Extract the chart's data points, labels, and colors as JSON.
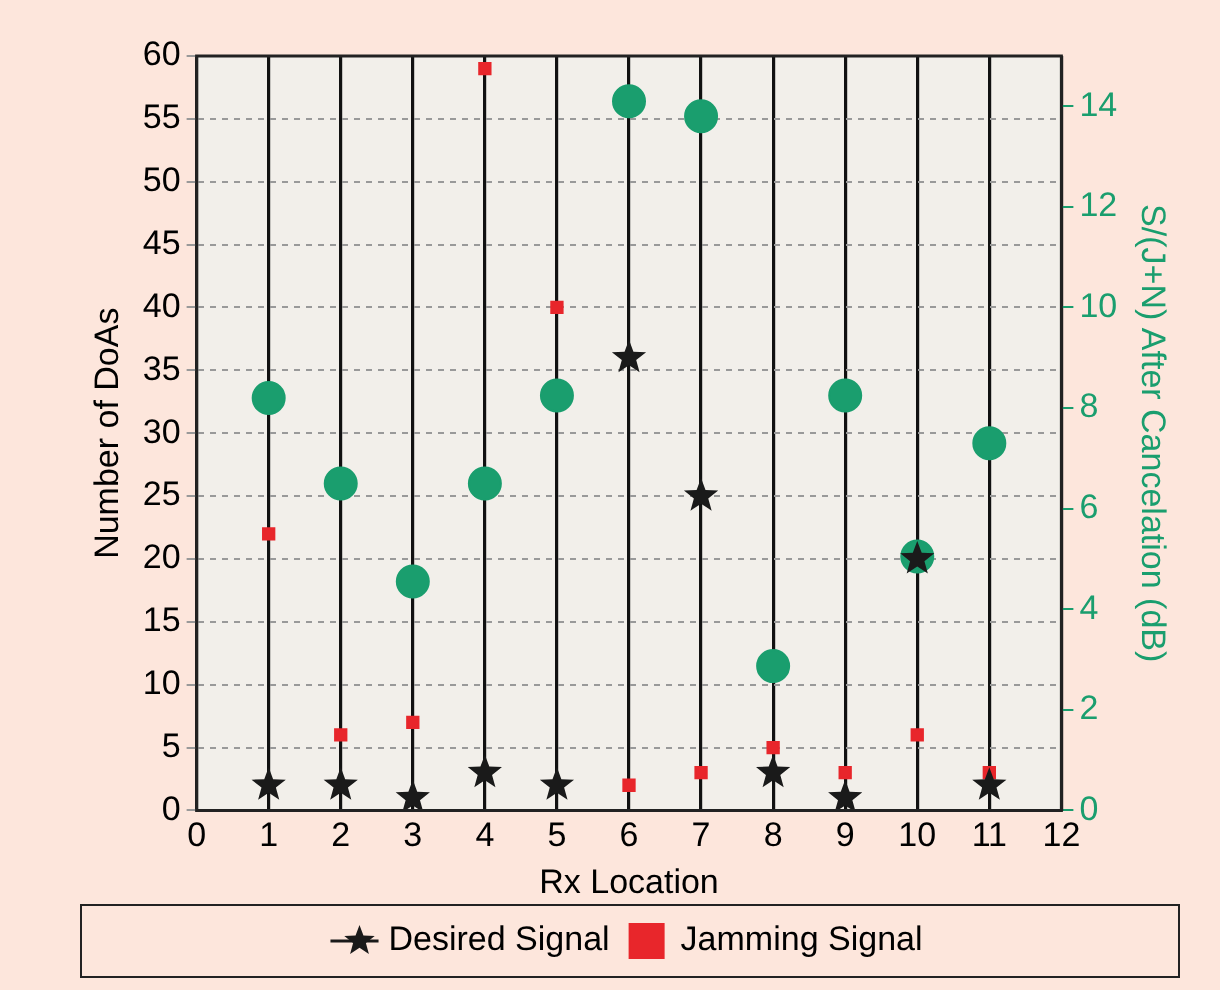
{
  "chart_data": {
    "type": "scatter",
    "xlabel": "Rx Location",
    "ylabel": "Number of DoAs",
    "y2label": "S/(J+N) After Cancelation (dB)",
    "x": [
      1,
      2,
      3,
      4,
      5,
      6,
      7,
      8,
      9,
      10,
      11
    ],
    "xlim": [
      0,
      12
    ],
    "xticks": [
      0,
      1,
      2,
      3,
      4,
      5,
      6,
      7,
      8,
      9,
      10,
      11,
      12
    ],
    "ylim": [
      0,
      60
    ],
    "yticks": [
      0,
      5,
      10,
      15,
      20,
      25,
      30,
      35,
      40,
      45,
      50,
      55,
      60
    ],
    "y2lim": [
      0,
      15
    ],
    "y2ticks": [
      0,
      2,
      4,
      6,
      8,
      10,
      12,
      14
    ],
    "grid": true,
    "legend": "bottom",
    "series": [
      {
        "name": "Desired Signal",
        "color": "#1a1a1a",
        "marker": "star",
        "values": [
          2,
          2,
          1,
          3,
          2,
          36,
          25,
          3,
          1,
          20,
          2
        ]
      },
      {
        "name": "Jamming Signal",
        "color": "#e8262b",
        "marker": "square",
        "values": [
          22,
          6,
          7,
          59,
          40,
          2,
          3,
          5,
          3,
          6,
          3
        ]
      },
      {
        "color": "#1a9e6e",
        "marker": "circle",
        "axis": "y2",
        "values": [
          8.2,
          6.5,
          4.55,
          6.5,
          8.25,
          14.1,
          13.8,
          2.87,
          8.25,
          5.05,
          7.3
        ]
      }
    ]
  }
}
